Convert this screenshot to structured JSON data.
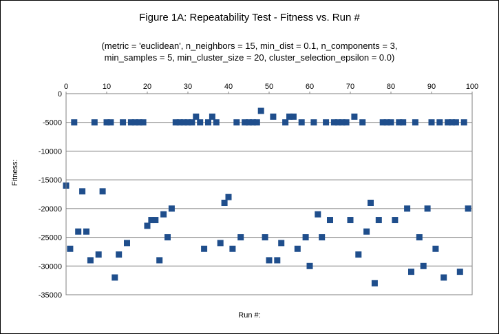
{
  "chart_data": {
    "type": "scatter",
    "title": "Figure 1A: Repeatability Test - Fitness vs. Run #",
    "subtitle_line1": "(metric = 'euclidean', n_neighbors = 15, min_dist = 0.1, n_components = 3,",
    "subtitle_line2": "min_samples = 5, min_cluster_size = 20, cluster_selection_epsilon = 0.0)",
    "xlabel": "Run #:",
    "ylabel": "Fitness:",
    "xlim": [
      0,
      100
    ],
    "ylim": [
      -35000,
      0
    ],
    "x_ticks": [
      0,
      10,
      20,
      30,
      40,
      50,
      60,
      70,
      80,
      90,
      100
    ],
    "y_ticks": [
      0,
      -5000,
      -10000,
      -15000,
      -20000,
      -25000,
      -30000,
      -35000
    ],
    "x_axis_position": "top",
    "grid": true,
    "legend": "none",
    "marker": "square",
    "marker_color": "#1f4e8c",
    "points": [
      [
        0,
        -16000
      ],
      [
        1,
        -27000
      ],
      [
        2,
        -5000
      ],
      [
        3,
        -24000
      ],
      [
        4,
        -17000
      ],
      [
        5,
        -24000
      ],
      [
        6,
        -29000
      ],
      [
        7,
        -5000
      ],
      [
        8,
        -28000
      ],
      [
        9,
        -17000
      ],
      [
        10,
        -5000
      ],
      [
        11,
        -5000
      ],
      [
        12,
        -32000
      ],
      [
        13,
        -28000
      ],
      [
        14,
        -5000
      ],
      [
        15,
        -26000
      ],
      [
        16,
        -5000
      ],
      [
        17,
        -5000
      ],
      [
        18,
        -5000
      ],
      [
        19,
        -5000
      ],
      [
        20,
        -23000
      ],
      [
        21,
        -22000
      ],
      [
        22,
        -22000
      ],
      [
        23,
        -29000
      ],
      [
        24,
        -21000
      ],
      [
        25,
        -25000
      ],
      [
        26,
        -20000
      ],
      [
        27,
        -5000
      ],
      [
        28,
        -5000
      ],
      [
        29,
        -5000
      ],
      [
        30,
        -5000
      ],
      [
        31,
        -5000
      ],
      [
        32,
        -4000
      ],
      [
        33,
        -5000
      ],
      [
        34,
        -27000
      ],
      [
        35,
        -5000
      ],
      [
        36,
        -4000
      ],
      [
        37,
        -5000
      ],
      [
        38,
        -26000
      ],
      [
        39,
        -19000
      ],
      [
        40,
        -18000
      ],
      [
        41,
        -27000
      ],
      [
        42,
        -5000
      ],
      [
        43,
        -25000
      ],
      [
        44,
        -5000
      ],
      [
        45,
        -5000
      ],
      [
        46,
        -5000
      ],
      [
        47,
        -5000
      ],
      [
        48,
        -3000
      ],
      [
        49,
        -25000
      ],
      [
        50,
        -29000
      ],
      [
        51,
        -4000
      ],
      [
        52,
        -29000
      ],
      [
        53,
        -26000
      ],
      [
        54,
        -5000
      ],
      [
        55,
        -4000
      ],
      [
        56,
        -4000
      ],
      [
        57,
        -27000
      ],
      [
        58,
        -5000
      ],
      [
        59,
        -25000
      ],
      [
        60,
        -30000
      ],
      [
        61,
        -5000
      ],
      [
        62,
        -21000
      ],
      [
        63,
        -25000
      ],
      [
        64,
        -5000
      ],
      [
        65,
        -22000
      ],
      [
        66,
        -5000
      ],
      [
        67,
        -5000
      ],
      [
        68,
        -5000
      ],
      [
        69,
        -5000
      ],
      [
        70,
        -22000
      ],
      [
        71,
        -4000
      ],
      [
        72,
        -28000
      ],
      [
        73,
        -5000
      ],
      [
        74,
        -24000
      ],
      [
        75,
        -19000
      ],
      [
        76,
        -33000
      ],
      [
        77,
        -22000
      ],
      [
        78,
        -5000
      ],
      [
        79,
        -5000
      ],
      [
        80,
        -5000
      ],
      [
        81,
        -22000
      ],
      [
        82,
        -5000
      ],
      [
        83,
        -5000
      ],
      [
        84,
        -20000
      ],
      [
        85,
        -31000
      ],
      [
        86,
        -5000
      ],
      [
        87,
        -25000
      ],
      [
        88,
        -30000
      ],
      [
        89,
        -20000
      ],
      [
        90,
        -5000
      ],
      [
        91,
        -27000
      ],
      [
        92,
        -5000
      ],
      [
        93,
        -32000
      ],
      [
        94,
        -5000
      ],
      [
        95,
        -5000
      ],
      [
        96,
        -5000
      ],
      [
        97,
        -31000
      ],
      [
        98,
        -5000
      ],
      [
        99,
        -20000
      ]
    ]
  }
}
